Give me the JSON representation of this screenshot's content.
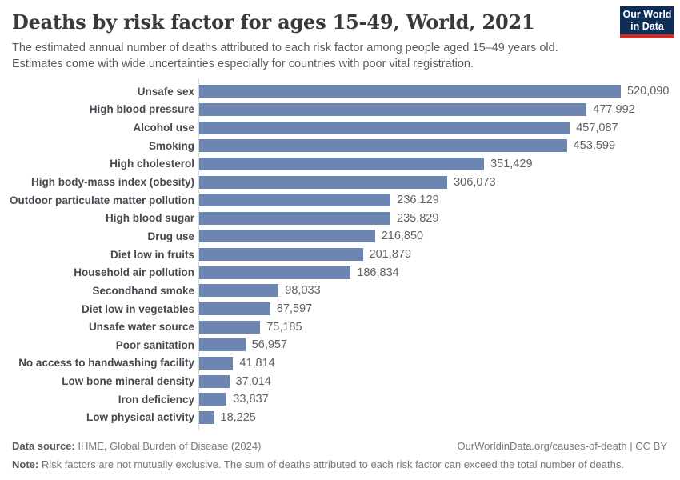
{
  "header": {
    "title": "Deaths by risk factor for ages 15-49, World, 2021",
    "subtitle_line1": "The estimated annual number of deaths attributed to each risk factor among people aged 15–49 years old.",
    "subtitle_line2": "Estimates come with wide uncertainties especially for countries with poor vital registration.",
    "logo": {
      "line1": "Our World",
      "line2": "in Data"
    }
  },
  "chart_data": {
    "type": "bar",
    "orientation": "horizontal",
    "title": "Deaths by risk factor for ages 15-49, World, 2021",
    "xlabel": "",
    "ylabel": "",
    "xlim": [
      0,
      520090
    ],
    "grid": false,
    "legend": "none",
    "bar_color": "#6d86b1",
    "categories": [
      "Unsafe sex",
      "High blood pressure",
      "Alcohol use",
      "Smoking",
      "High cholesterol",
      "High body-mass index (obesity)",
      "Outdoor particulate matter pollution",
      "High blood sugar",
      "Drug use",
      "Diet low in fruits",
      "Household air pollution",
      "Secondhand smoke",
      "Diet low in vegetables",
      "Unsafe water source",
      "Poor sanitation",
      "No access to handwashing facility",
      "Low bone mineral density",
      "Iron deficiency",
      "Low physical activity"
    ],
    "values": [
      520090,
      477992,
      457087,
      453599,
      351429,
      306073,
      236129,
      235829,
      216850,
      201879,
      186834,
      98033,
      87597,
      75185,
      56957,
      41814,
      37014,
      33837,
      18225
    ],
    "value_labels": [
      "520,090",
      "477,992",
      "457,087",
      "453,599",
      "351,429",
      "306,073",
      "236,129",
      "235,829",
      "216,850",
      "201,879",
      "186,834",
      "98,033",
      "87,597",
      "75,185",
      "56,957",
      "41,814",
      "37,014",
      "33,837",
      "18,225"
    ]
  },
  "footer": {
    "source_label": "Data source:",
    "source_text": " IHME, Global Burden of Disease (2024)",
    "credit": "OurWorldinData.org/causes-of-death | CC BY",
    "note_label": "Note:",
    "note_text": " Risk factors are not mutually exclusive. The sum of deaths attributed to each risk factor can exceed the total number of deaths."
  }
}
